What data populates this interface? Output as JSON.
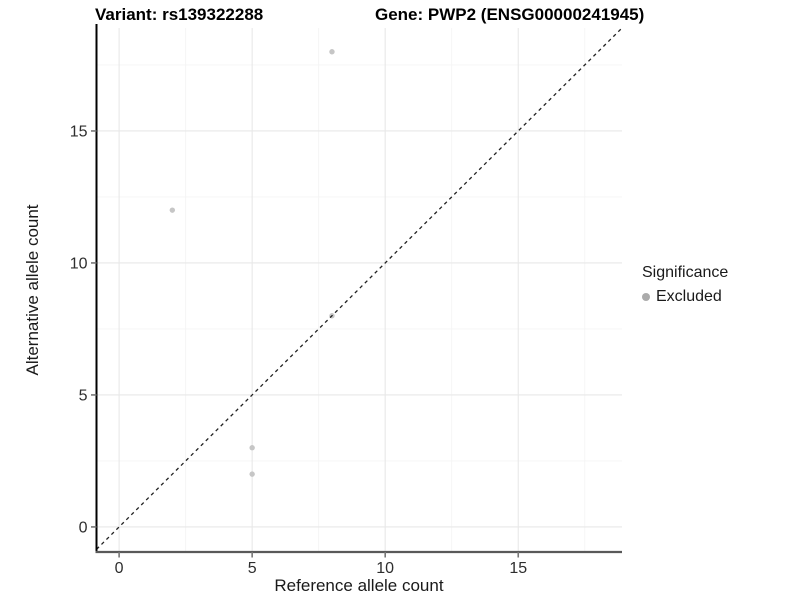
{
  "title": {
    "variant": "Variant: rs139322288",
    "gene": "Gene: PWP2 (ENSG00000241945)"
  },
  "legend": {
    "title": "Significance",
    "items": [
      {
        "label": "Excluded",
        "color": "#ababab"
      }
    ]
  },
  "chart_data": {
    "type": "scatter",
    "title": "Variant: rs139322288 — Gene: PWP2 (ENSG00000241945)",
    "xlabel": "Reference allele count",
    "ylabel": "Alternative allele count",
    "xlim": [
      -0.85,
      18.9
    ],
    "ylim": [
      -0.95,
      18.9
    ],
    "xticks": [
      0,
      5,
      10,
      15
    ],
    "yticks": [
      0,
      5,
      10,
      15
    ],
    "xticks_minor": [
      2.5,
      7.5,
      12.5,
      17.5
    ],
    "yticks_minor": [
      2.5,
      7.5,
      12.5,
      17.5
    ],
    "grid": true,
    "legend_position": "right",
    "series": [
      {
        "name": "Excluded",
        "color": "#c6c6c6",
        "points": [
          [
            8,
            18
          ],
          [
            2,
            12
          ],
          [
            8,
            8
          ],
          [
            5,
            3
          ],
          [
            5,
            2
          ]
        ]
      }
    ],
    "reference_line": {
      "type": "identity",
      "slope": 1,
      "intercept": 0,
      "style": "dashed",
      "color": "#222222"
    },
    "style": {
      "background": "#ffffff",
      "grid_major": "#e8e8e8",
      "grid_minor": "#f4f4f4",
      "axis_line_x": "#595959",
      "axis_line_y": "#000000",
      "tick_mark": "#777777",
      "tick_label": "#2e2e2e"
    }
  }
}
